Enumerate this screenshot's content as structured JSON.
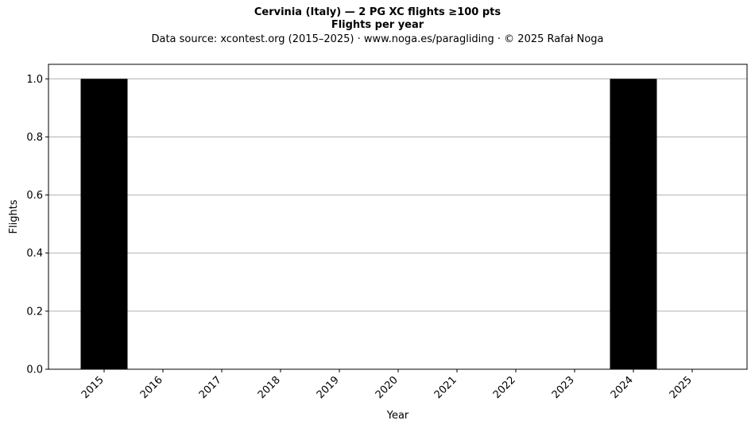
{
  "chart_data": {
    "type": "bar",
    "title": "Cervinia (Italy)  —  2 PG XC flights ≥100 pts",
    "subtitle": "Flights per year",
    "source_note": "Data source: xcontest.org (2015–2025)  ·  www.noga.es/paragliding  ·  © 2025 Rafał Noga",
    "xlabel": "Year",
    "ylabel": "Flights",
    "categories": [
      "2015",
      "2016",
      "2017",
      "2018",
      "2019",
      "2020",
      "2021",
      "2022",
      "2023",
      "2024",
      "2025"
    ],
    "values": [
      1,
      0,
      0,
      0,
      0,
      0,
      0,
      0,
      0,
      1,
      0
    ],
    "ylim": [
      0,
      1.05
    ],
    "yticks": [
      0.0,
      0.2,
      0.4,
      0.6,
      0.8,
      1.0
    ],
    "ytick_labels": [
      "0.0",
      "0.2",
      "0.4",
      "0.6",
      "0.8",
      "1.0"
    ],
    "grid": "y",
    "bar_color": "#000000",
    "grid_color": "#b0b0b0"
  }
}
